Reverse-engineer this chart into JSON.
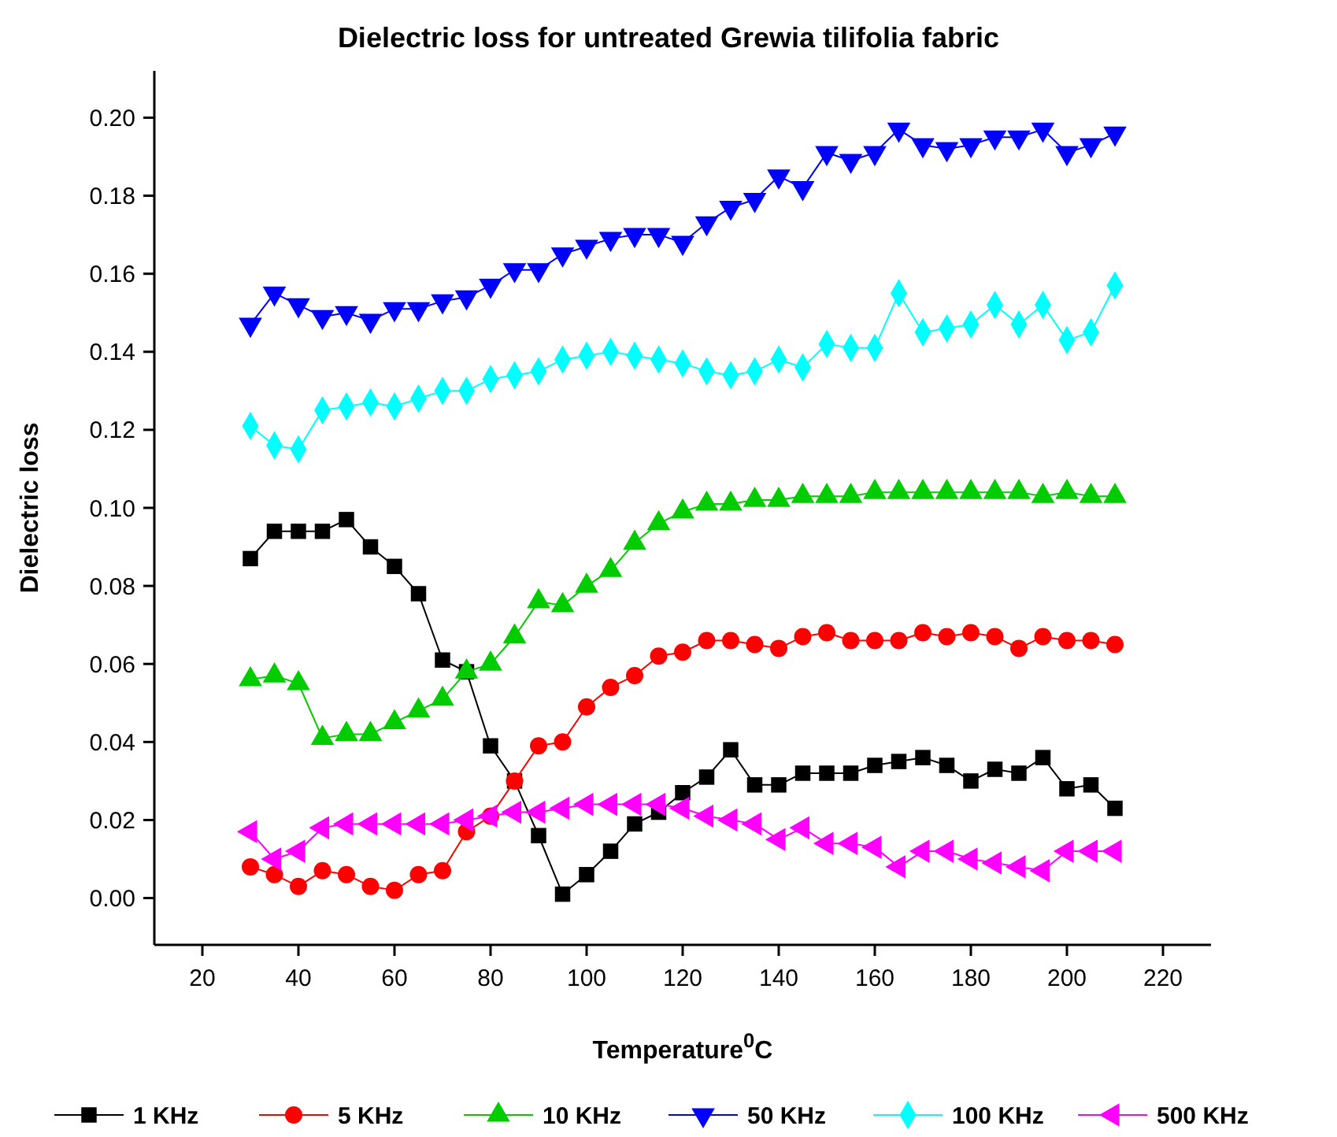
{
  "chart_data": {
    "type": "line",
    "title": "Dielectric loss for untreated Grewia tilifolia fabric",
    "xlabel": "Temperature$^{0}$C",
    "ylabel": "Dielectric loss",
    "x": [
      30,
      35,
      40,
      45,
      50,
      55,
      60,
      65,
      70,
      75,
      80,
      85,
      90,
      95,
      100,
      105,
      110,
      115,
      120,
      125,
      130,
      135,
      140,
      145,
      150,
      155,
      160,
      165,
      170,
      175,
      180,
      185,
      190,
      195,
      200,
      205,
      210
    ],
    "xlim": [
      10,
      230
    ],
    "xticks": [
      20,
      40,
      60,
      80,
      100,
      120,
      140,
      160,
      180,
      200,
      220
    ],
    "ylim": [
      -0.012,
      0.212
    ],
    "yticks": [
      {
        "value": 0,
        "label": "0.00"
      },
      {
        "value": 0.02,
        "label": "0.02"
      },
      {
        "value": 0.04,
        "label": "0.04"
      },
      {
        "value": 0.06,
        "label": "0.06"
      },
      {
        "value": 0.08,
        "label": "0.08"
      },
      {
        "value": 0.1,
        "label": "0.10"
      },
      {
        "value": 0.12,
        "label": "0.12"
      },
      {
        "value": 0.14,
        "label": "0.14"
      },
      {
        "value": 0.16,
        "label": "0.16"
      },
      {
        "value": 0.18,
        "label": "0.18"
      },
      {
        "value": 0.2,
        "label": "0.20"
      }
    ],
    "grid": false,
    "legend": "bottom",
    "line_style": "solid",
    "series": [
      {
        "name": "1 KHz",
        "color": "#000000",
        "marker": "square",
        "values": [
          0.087,
          0.094,
          0.094,
          0.094,
          0.097,
          0.09,
          0.085,
          0.078,
          0.061,
          0.058,
          0.039,
          0.03,
          0.016,
          0.001,
          0.006,
          0.012,
          0.019,
          0.022,
          0.027,
          0.031,
          0.038,
          0.029,
          0.029,
          0.032,
          0.032,
          0.032,
          0.034,
          0.035,
          0.036,
          0.034,
          0.03,
          0.033,
          0.032,
          0.036,
          0.028,
          0.029,
          0.023
        ]
      },
      {
        "name": "5 KHz",
        "color": "#ff0000",
        "marker": "circle",
        "values": [
          0.008,
          0.006,
          0.003,
          0.007,
          0.006,
          0.003,
          0.002,
          0.006,
          0.007,
          0.017,
          0.021,
          0.03,
          0.039,
          0.04,
          0.049,
          0.054,
          0.057,
          0.062,
          0.063,
          0.066,
          0.066,
          0.065,
          0.064,
          0.067,
          0.068,
          0.066,
          0.066,
          0.066,
          0.068,
          0.067,
          0.068,
          0.067,
          0.064,
          0.067,
          0.066,
          0.066,
          0.065
        ]
      },
      {
        "name": "10 KHz",
        "color": "#00cc00",
        "marker": "triangle",
        "values": [
          0.056,
          0.057,
          0.055,
          0.041,
          0.042,
          0.042,
          0.045,
          0.048,
          0.051,
          0.058,
          0.06,
          0.067,
          0.076,
          0.075,
          0.08,
          0.084,
          0.091,
          0.096,
          0.099,
          0.101,
          0.101,
          0.102,
          0.102,
          0.103,
          0.103,
          0.103,
          0.104,
          0.104,
          0.104,
          0.104,
          0.104,
          0.104,
          0.104,
          0.103,
          0.104,
          0.103,
          0.103
        ]
      },
      {
        "name": "50 KHz",
        "color": "#0000ff",
        "marker": "triangle-down",
        "values": [
          0.147,
          0.155,
          0.152,
          0.149,
          0.15,
          0.148,
          0.151,
          0.151,
          0.153,
          0.154,
          0.157,
          0.161,
          0.161,
          0.165,
          0.167,
          0.169,
          0.17,
          0.17,
          0.168,
          0.173,
          0.177,
          0.179,
          0.185,
          0.182,
          0.191,
          0.189,
          0.191,
          0.197,
          0.193,
          0.192,
          0.193,
          0.195,
          0.195,
          0.197,
          0.191,
          0.193,
          0.196
        ]
      },
      {
        "name": "100 KHz",
        "color": "#00ffff",
        "marker": "diamond",
        "values": [
          0.121,
          0.116,
          0.115,
          0.125,
          0.126,
          0.127,
          0.126,
          0.128,
          0.13,
          0.13,
          0.133,
          0.134,
          0.135,
          0.138,
          0.139,
          0.14,
          0.139,
          0.138,
          0.137,
          0.135,
          0.134,
          0.135,
          0.138,
          0.136,
          0.142,
          0.141,
          0.141,
          0.155,
          0.145,
          0.146,
          0.147,
          0.152,
          0.147,
          0.152,
          0.143,
          0.145,
          0.157
        ]
      },
      {
        "name": "500 KHz",
        "color": "#ff00ff",
        "marker": "triangle-left",
        "values": [
          0.017,
          0.01,
          0.012,
          0.018,
          0.019,
          0.019,
          0.019,
          0.019,
          0.019,
          0.02,
          0.021,
          0.022,
          0.022,
          0.023,
          0.024,
          0.024,
          0.024,
          0.024,
          0.023,
          0.021,
          0.02,
          0.019,
          0.015,
          0.018,
          0.014,
          0.014,
          0.013,
          0.008,
          0.012,
          0.012,
          0.01,
          0.009,
          0.008,
          0.007,
          0.012,
          0.012,
          0.012
        ]
      }
    ]
  }
}
